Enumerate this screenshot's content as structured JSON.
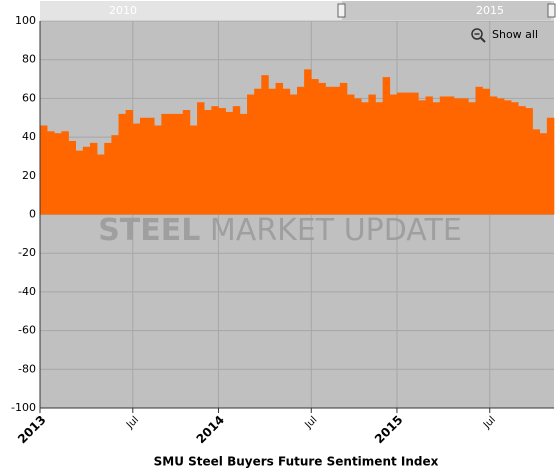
{
  "chart_data": {
    "type": "bar",
    "x_label": "SMU Steel Buyers Future Sentiment Index",
    "watermark": [
      "STEEL",
      "MARKET",
      "UPDATE"
    ],
    "button": "Show all",
    "navigator_labels": [
      "2010",
      "2015"
    ],
    "color": "#ff6600",
    "grid": true,
    "ylim": [
      -100,
      100
    ],
    "yticks": [
      -100,
      -80,
      -60,
      -40,
      -20,
      0,
      20,
      40,
      60,
      80,
      100
    ],
    "categories": [
      "2013",
      null,
      null,
      null,
      null,
      null,
      null,
      null,
      null,
      null,
      null,
      null,
      null,
      "Jul",
      null,
      null,
      null,
      null,
      null,
      null,
      null,
      null,
      null,
      null,
      null,
      "2014",
      null,
      null,
      null,
      null,
      null,
      null,
      null,
      null,
      null,
      null,
      null,
      null,
      "Jul",
      null,
      null,
      null,
      null,
      null,
      null,
      null,
      null,
      null,
      null,
      null,
      "2015",
      null,
      null,
      null,
      null,
      null,
      null,
      null,
      null,
      null,
      null,
      null,
      null,
      "Jul",
      null,
      null,
      null,
      null,
      null,
      null,
      null,
      null
    ],
    "values": [
      46,
      43,
      42,
      43,
      38,
      33,
      35,
      37,
      31,
      37,
      41,
      52,
      54,
      47,
      50,
      50,
      46,
      52,
      52,
      52,
      54,
      46,
      58,
      54,
      56,
      55,
      53,
      56,
      52,
      62,
      65,
      72,
      65,
      68,
      65,
      62,
      66,
      75,
      70,
      68,
      66,
      66,
      68,
      62,
      60,
      58,
      62,
      58,
      71,
      62,
      63,
      63,
      63,
      59,
      61,
      58,
      61,
      61,
      60,
      60,
      58,
      66,
      65,
      61,
      60,
      59,
      58,
      56,
      55,
      44,
      42,
      50
    ]
  }
}
